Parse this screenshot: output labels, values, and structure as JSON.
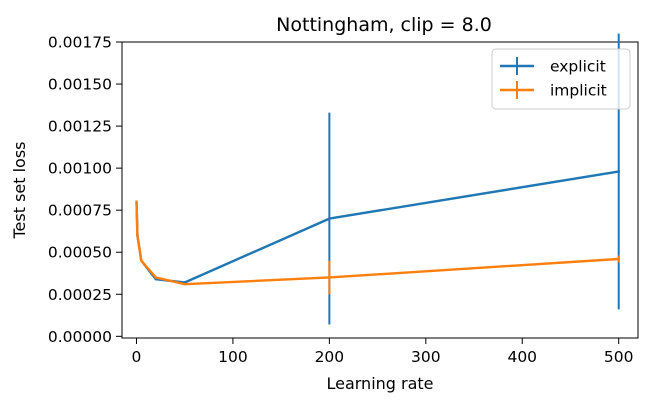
{
  "chart_data": {
    "type": "line",
    "title": "Nottingham, clip = 8.0",
    "xlabel": "Learning rate",
    "ylabel": "Test set loss",
    "xlim": [
      -15,
      520
    ],
    "ylim": [
      -1e-05,
      0.00175
    ],
    "xticks": [
      0,
      100,
      200,
      300,
      400,
      500
    ],
    "xtick_labels": [
      "0",
      "100",
      "200",
      "300",
      "400",
      "500"
    ],
    "yticks": [
      0.0,
      0.00025,
      0.0005,
      0.00075,
      0.001,
      0.00125,
      0.0015,
      0.00175
    ],
    "ytick_labels": [
      "0.00000",
      "0.00025",
      "0.00050",
      "0.00075",
      "0.00100",
      "0.00125",
      "0.00150",
      "0.00175"
    ],
    "grid": false,
    "legend_position": "top-right",
    "series": [
      {
        "name": "explicit",
        "color": "#1f77b4",
        "points": [
          {
            "x": 0.1,
            "y": 0.00079,
            "err": 0.0
          },
          {
            "x": 1,
            "y": 0.0006,
            "err": 0.0
          },
          {
            "x": 5,
            "y": 0.00045,
            "err": 0.0
          },
          {
            "x": 20,
            "y": 0.00034,
            "err": 0.0
          },
          {
            "x": 50,
            "y": 0.00032,
            "err": 0.0
          },
          {
            "x": 200,
            "y": 0.0007,
            "err": 0.00063
          },
          {
            "x": 500,
            "y": 0.00098,
            "err": 0.00082
          }
        ]
      },
      {
        "name": "implicit",
        "color": "#ff7f0e",
        "points": [
          {
            "x": 0.1,
            "y": 0.0008,
            "err": 0.0
          },
          {
            "x": 1,
            "y": 0.0006,
            "err": 0.0
          },
          {
            "x": 5,
            "y": 0.00045,
            "err": 0.0
          },
          {
            "x": 20,
            "y": 0.00035,
            "err": 0.0
          },
          {
            "x": 50,
            "y": 0.00031,
            "err": 0.0
          },
          {
            "x": 200,
            "y": 0.00035,
            "err": 0.0001
          },
          {
            "x": 500,
            "y": 0.00046,
            "err": 2e-05
          }
        ]
      }
    ]
  }
}
